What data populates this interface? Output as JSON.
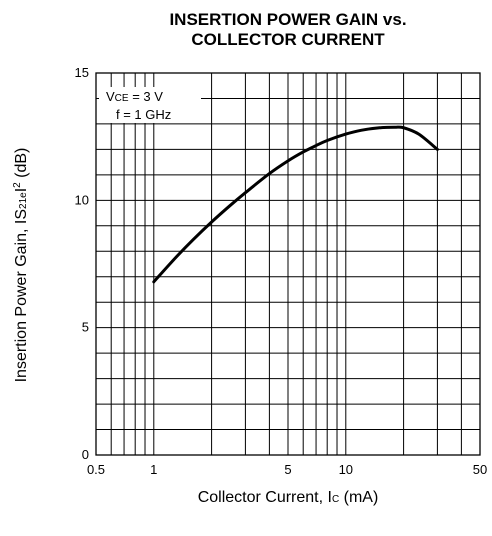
{
  "chart_data": {
    "type": "line",
    "title": "INSERTION POWER GAIN vs.",
    "subtitle": "COLLECTOR CURRENT",
    "xlabel": {
      "main": "Collector Current, I",
      "sub": "C",
      "unit": " (mA)"
    },
    "ylabel": {
      "main": "Insertion Power Gain, IS",
      "sub": "21e",
      "tail": "I",
      "sup": "2",
      "unit": " (dB)"
    },
    "x_scale": "log",
    "xlim": [
      0.5,
      50
    ],
    "ylim": [
      0,
      15
    ],
    "x_ticks": [
      {
        "value": 0.5,
        "label": "0.5"
      },
      {
        "value": 1,
        "label": "1"
      },
      {
        "value": 5,
        "label": "5"
      },
      {
        "value": 10,
        "label": "10"
      },
      {
        "value": 50,
        "label": "50"
      }
    ],
    "y_ticks": [
      {
        "value": 0,
        "label": "0"
      },
      {
        "value": 5,
        "label": "5"
      },
      {
        "value": 10,
        "label": "10"
      },
      {
        "value": 15,
        "label": "15"
      }
    ],
    "grid": true,
    "annotations": {
      "line1_main": "V",
      "line1_sub": "CE",
      "line1_tail": " = 3 V",
      "line2": "f = 1 GHz"
    },
    "series": [
      {
        "x": [
          1,
          1.3,
          1.6,
          2,
          2.5,
          3,
          4,
          5,
          6,
          7,
          8,
          10,
          12,
          15,
          18,
          20,
          24,
          30
        ],
        "y": [
          6.8,
          7.75,
          8.45,
          9.15,
          9.8,
          10.3,
          11.05,
          11.55,
          11.9,
          12.15,
          12.35,
          12.6,
          12.75,
          12.85,
          12.87,
          12.85,
          12.6,
          12.0
        ]
      }
    ],
    "colors": {
      "line": "#000000",
      "grid": "#000000"
    }
  }
}
